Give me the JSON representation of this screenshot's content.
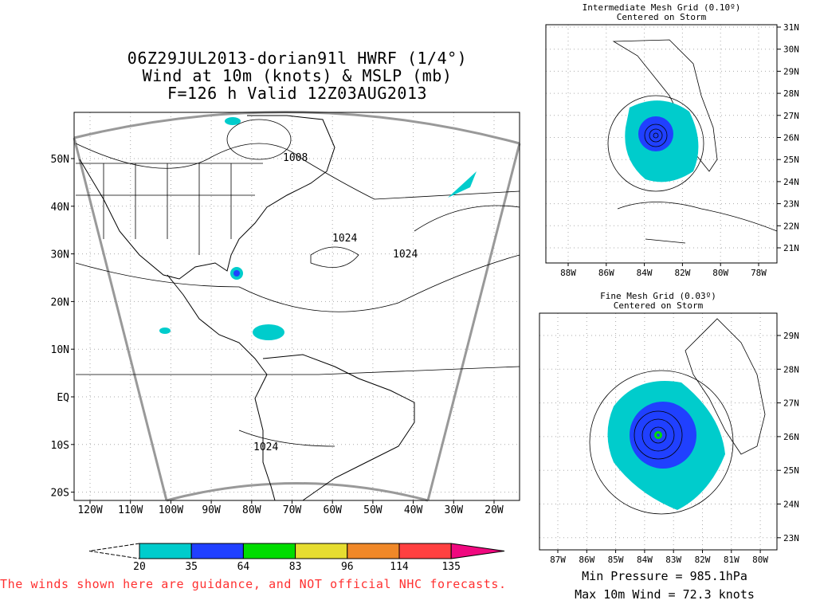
{
  "main_map": {
    "title_lines": [
      "06Z29JUL2013-dorian91l HWRF (1/4°)",
      "Wind at 10m (knots) & MSLP (mb)",
      "F=126 h Valid 12Z03AUG2013"
    ],
    "lat_labels": [
      "50N",
      "40N",
      "30N",
      "20N",
      "10N",
      "EQ",
      "10S",
      "20S"
    ],
    "lon_labels": [
      "120W",
      "110W",
      "100W",
      "90W",
      "80W",
      "70W",
      "60W",
      "50W",
      "40W",
      "30W",
      "20W"
    ],
    "contour_labels": [
      "1008",
      "1024",
      "1024",
      "1024"
    ]
  },
  "intermediate_grid": {
    "title": "Intermediate Mesh Grid (0.10º)",
    "subtitle": "Centered on Storm",
    "lat_labels": [
      "31N",
      "30N",
      "29N",
      "28N",
      "27N",
      "26N",
      "25N",
      "24N",
      "23N",
      "22N",
      "21N"
    ],
    "lon_labels": [
      "88W",
      "86W",
      "84W",
      "82W",
      "80W",
      "78W"
    ]
  },
  "fine_grid": {
    "title": "Fine Mesh Grid (0.03º)",
    "subtitle": "Centered on Storm",
    "lat_labels": [
      "29N",
      "28N",
      "27N",
      "26N",
      "25N",
      "24N",
      "23N"
    ],
    "lon_labels": [
      "87W",
      "86W",
      "85W",
      "84W",
      "83W",
      "82W",
      "81W",
      "80W"
    ]
  },
  "colorbar": {
    "unit": "knots",
    "levels": [
      "20",
      "35",
      "64",
      "83",
      "96",
      "114",
      "135"
    ],
    "colors": [
      "#00cccc",
      "#2040ff",
      "#00dd00",
      "#e6dd30",
      "#f08828",
      "#ff4040",
      "#f0087f"
    ]
  },
  "disclaimer": "The winds shown here are guidance, and NOT official NHC forecasts.",
  "stats": {
    "min_pressure": "Min Pressure = 985.1hPa",
    "max_wind": "Max 10m Wind = 72.3 knots"
  }
}
